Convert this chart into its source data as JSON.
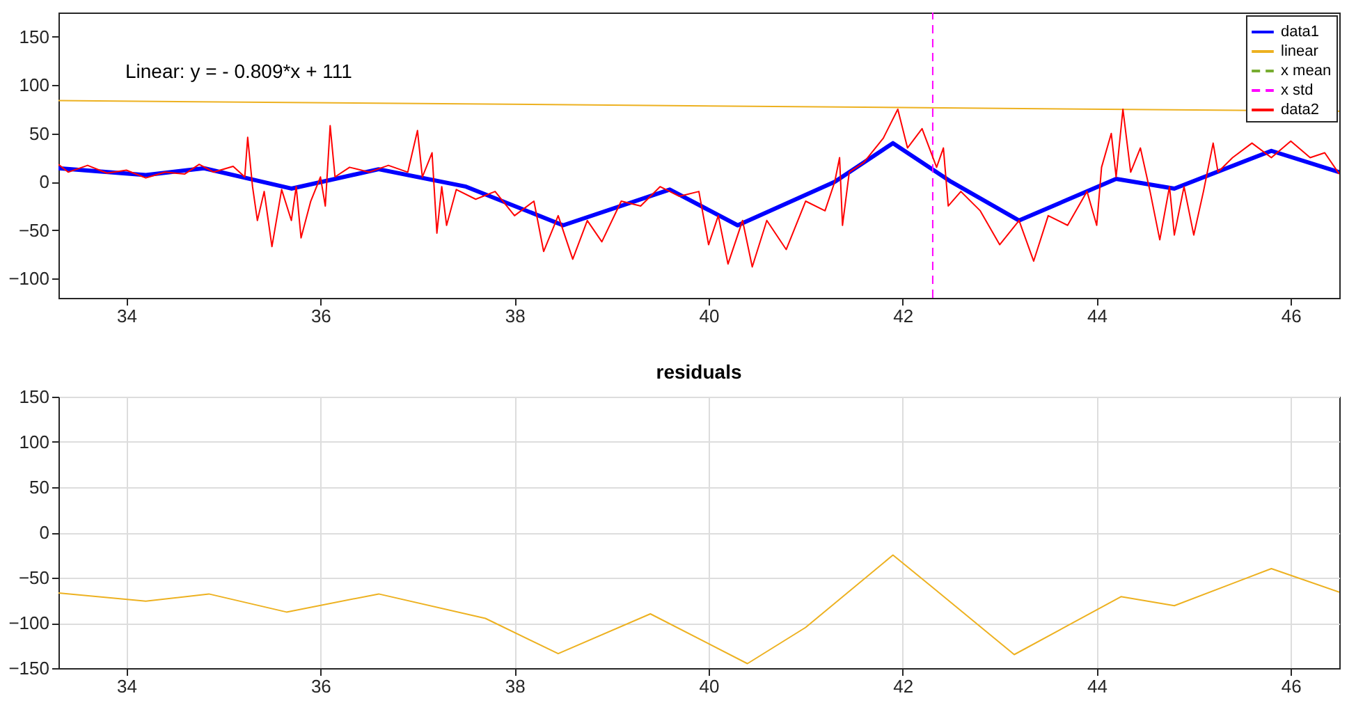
{
  "chart_data": [
    {
      "type": "line",
      "xlim": [
        33.3,
        46.5
      ],
      "xticks": [
        34,
        36,
        38,
        40,
        42,
        44,
        46
      ],
      "ylim": [
        -120,
        175
      ],
      "yticks": [
        -100,
        -50,
        0,
        50,
        100,
        150
      ],
      "grid": false,
      "legend": "top right",
      "annotations": [
        "Linear:  y = - 0.809*x + 111"
      ],
      "series": [
        {
          "name": "data1",
          "color": "#0000ff",
          "line_style": "solid",
          "x": [
            33.3,
            34.2,
            34.8,
            35.7,
            36.6,
            37.5,
            38.5,
            39.6,
            40.3,
            41.3,
            41.9,
            42.5,
            43.2,
            44.2,
            44.8,
            45.8,
            46.5
          ],
          "values": [
            14,
            7,
            14,
            -7,
            13,
            -5,
            -45,
            -8,
            -45,
            0,
            40,
            0,
            -40,
            3,
            -7,
            32,
            10
          ]
        },
        {
          "name": "linear",
          "color": "#edb120",
          "line_style": "solid",
          "x": [
            33.3,
            46.5
          ],
          "values": [
            84,
            73
          ]
        },
        {
          "name": "x mean",
          "color": "#77ac30",
          "line_style": "dashed"
        },
        {
          "name": "x std",
          "color": "#ff00ff",
          "line_style": "dashed",
          "x": [
            42.31,
            42.31
          ],
          "values": [
            -120,
            175
          ]
        },
        {
          "name": "data2",
          "color": "#ff0000",
          "line_style": "solid",
          "x": [
            33.3,
            33.4,
            33.6,
            33.8,
            34.0,
            34.2,
            34.4,
            34.6,
            34.75,
            34.9,
            35.1,
            35.22,
            35.25,
            35.3,
            35.35,
            35.42,
            35.5,
            35.6,
            35.7,
            35.75,
            35.8,
            35.9,
            36.0,
            36.05,
            36.1,
            36.15,
            36.3,
            36.5,
            36.7,
            36.9,
            37.0,
            37.05,
            37.15,
            37.2,
            37.25,
            37.3,
            37.4,
            37.6,
            37.8,
            38.0,
            38.2,
            38.3,
            38.45,
            38.6,
            38.75,
            38.9,
            39.1,
            39.3,
            39.5,
            39.7,
            39.9,
            40.0,
            40.1,
            40.2,
            40.35,
            40.45,
            40.6,
            40.8,
            41.0,
            41.2,
            41.3,
            41.35,
            41.38,
            41.45,
            41.6,
            41.8,
            41.95,
            42.05,
            42.2,
            42.35,
            42.42,
            42.47,
            42.6,
            42.8,
            43.0,
            43.2,
            43.35,
            43.5,
            43.7,
            43.9,
            44.0,
            44.05,
            44.15,
            44.2,
            44.27,
            44.35,
            44.45,
            44.55,
            44.65,
            44.75,
            44.8,
            44.9,
            45.0,
            45.1,
            45.2,
            45.25,
            45.4,
            45.6,
            45.8,
            46.0,
            46.2,
            46.35,
            46.5
          ],
          "values": [
            18,
            10,
            17,
            9,
            12,
            4,
            10,
            8,
            18,
            10,
            16,
            5,
            46,
            -5,
            -40,
            -10,
            -67,
            -8,
            -40,
            -5,
            -58,
            -20,
            5,
            -25,
            58,
            5,
            15,
            10,
            17,
            10,
            53,
            5,
            30,
            -53,
            -5,
            -45,
            -8,
            -18,
            -10,
            -35,
            -20,
            -72,
            -35,
            -80,
            -40,
            -62,
            -20,
            -25,
            -5,
            -15,
            -10,
            -65,
            -35,
            -85,
            -40,
            -88,
            -40,
            -70,
            -20,
            -30,
            0,
            25,
            -45,
            10,
            20,
            45,
            75,
            35,
            55,
            15,
            35,
            -25,
            -10,
            -30,
            -65,
            -40,
            -82,
            -35,
            -45,
            -10,
            -45,
            15,
            50,
            5,
            75,
            10,
            35,
            -10,
            -60,
            -5,
            -55,
            -5,
            -55,
            -10,
            40,
            10,
            25,
            40,
            25,
            42,
            25,
            30,
            8
          ]
        }
      ]
    },
    {
      "type": "line",
      "title": "residuals",
      "xlim": [
        33.3,
        46.5
      ],
      "xticks": [
        34,
        36,
        38,
        40,
        42,
        44,
        46
      ],
      "ylim": [
        -150,
        150
      ],
      "yticks": [
        -150,
        -100,
        -50,
        0,
        50,
        100,
        150
      ],
      "grid": true,
      "series": [
        {
          "color": "#edb120",
          "line_style": "solid",
          "x": [
            33.3,
            34.2,
            34.85,
            35.65,
            36.6,
            37.7,
            38.45,
            39.4,
            40.4,
            41.0,
            41.9,
            42.3,
            43.15,
            44.25,
            44.8,
            45.8,
            46.5
          ],
          "values": [
            -67,
            -76,
            -68,
            -88,
            -68,
            -95,
            -134,
            -90,
            -145,
            -105,
            -25,
            -60,
            -135,
            -71,
            -81,
            -40,
            -66
          ]
        }
      ]
    }
  ]
}
